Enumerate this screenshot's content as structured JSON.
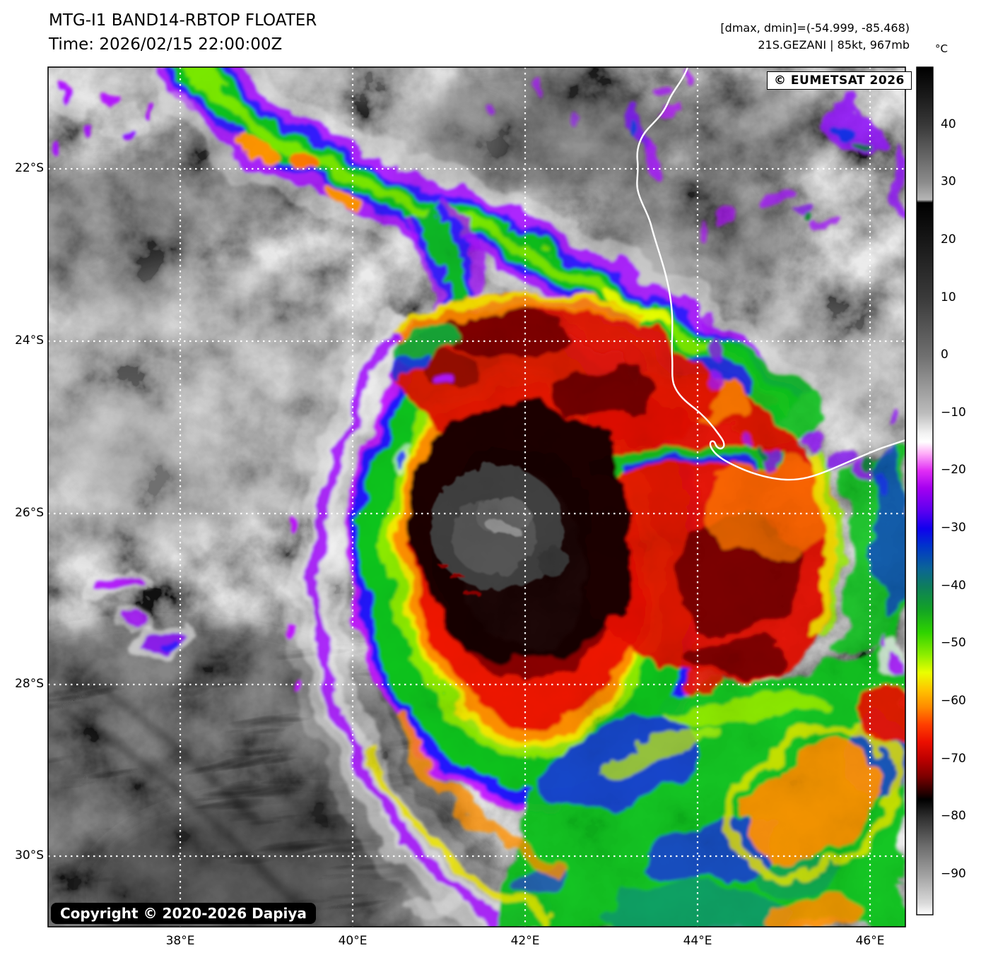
{
  "figure": {
    "title": "MTG-I1 BAND14-RBTOP FLOATER",
    "subtitle": "Time: 2026/02/15 22:00:00Z",
    "info_line1": "[dmax, dmin]=(-54.999, -85.468)",
    "info_line2": "21S.GEZANI | 85kt, 967mb"
  },
  "map": {
    "eumetsat_badge": "© EUMETSAT 2026",
    "copyright_badge": "Copyright © 2020-2026 Dapiya",
    "x_tick_labels": [
      "38°E",
      "40°E",
      "42°E",
      "44°E",
      "46°E"
    ],
    "y_tick_labels": [
      "22°S",
      "24°S",
      "26°S",
      "28°S",
      "30°S"
    ],
    "grid_style": "white-dotted",
    "coastline_color": "#ffffff"
  },
  "colorbar": {
    "unit": "°C",
    "tick_labels": [
      "40",
      "30",
      "20",
      "10",
      "0",
      "−10",
      "−20",
      "−30",
      "−40",
      "−50",
      "−60",
      "−70",
      "−80",
      "−90"
    ],
    "tick_values": [
      40,
      30,
      20,
      10,
      0,
      -10,
      -20,
      -30,
      -40,
      -50,
      -60,
      -70,
      -80,
      -90
    ],
    "value_range": [
      50,
      -97
    ],
    "gradient_stops": [
      [
        50,
        "#000000"
      ],
      [
        45,
        "#1a1a1a"
      ],
      [
        40,
        "#383838"
      ],
      [
        30,
        "#8c8c8c"
      ],
      [
        27,
        "#b6b6b6"
      ],
      [
        26.5,
        "#000000"
      ],
      [
        10,
        "#3a3a3a"
      ],
      [
        0,
        "#6f6f6f"
      ],
      [
        -10,
        "#bcbcbc"
      ],
      [
        -13.5,
        "#f2f2f2"
      ],
      [
        -15,
        "#ffffff"
      ],
      [
        -17,
        "#ffaef8"
      ],
      [
        -20,
        "#e02df5"
      ],
      [
        -23,
        "#a500f0"
      ],
      [
        -27,
        "#5b00f0"
      ],
      [
        -30,
        "#1000ee"
      ],
      [
        -33,
        "#0033cc"
      ],
      [
        -37,
        "#0b6596"
      ],
      [
        -40,
        "#0e7d5e"
      ],
      [
        -44,
        "#12a226"
      ],
      [
        -48,
        "#2ed300"
      ],
      [
        -52,
        "#8fee00"
      ],
      [
        -55,
        "#eaff00"
      ],
      [
        -58,
        "#ffc400"
      ],
      [
        -61,
        "#ff8a00"
      ],
      [
        -64,
        "#ff3f00"
      ],
      [
        -67,
        "#ec0f00"
      ],
      [
        -70,
        "#bd0000"
      ],
      [
        -73,
        "#7d0000"
      ],
      [
        -76,
        "#210000"
      ],
      [
        -77,
        "#000000"
      ],
      [
        -80,
        "#2e2e2e"
      ],
      [
        -85,
        "#6b6b6b"
      ],
      [
        -90,
        "#a0a0a0"
      ],
      [
        -95,
        "#dadada"
      ],
      [
        -97,
        "#ffffff"
      ]
    ]
  },
  "chart_data": {
    "type": "heatmap",
    "title": "MTG-I1 BAND14-RBTOP FLOATER",
    "time_utc": "2026/02/15 22:00:00Z",
    "satellite": "MTG-I1",
    "band": "BAND14",
    "enhancement": "RBTOP",
    "storm": {
      "id": "21S",
      "name": "GEZANI",
      "intensity_kt": 85,
      "pressure_mb": 967,
      "center_approx": {
        "lon_deg_e": 42.0,
        "lat_deg_s": 26.7
      }
    },
    "dmax_c": -54.999,
    "dmin_c": -85.468,
    "x_axis": {
      "unit": "°E",
      "ticks": [
        38,
        40,
        42,
        44,
        46
      ],
      "range_approx": [
        36.5,
        46.4
      ]
    },
    "y_axis": {
      "unit": "°S",
      "ticks": [
        22,
        24,
        26,
        28,
        30
      ],
      "range_approx": [
        20.8,
        30.9
      ]
    },
    "colorbar_unit": "°C",
    "grid": "dotted-white graticule every 2 degrees",
    "features": [
      "tropical cyclone with warm gray eye/dry slot near 42E 26.7S",
      "ring of overshooting cold tops (-70 to -85C, dark red to black) around the eye",
      "large red/orange cold cloud shield (-60 to -75C) extending east toward 45E",
      "curved convective band from 38E 21S arcing southeast toward 44E 25S with -55 to -60C cores",
      "green/blue outflow cirrus (-30 to -50C) across the southeast quadrant",
      "white west coastline of Madagascar drawn on the right half",
      "scattered cold convective cells (-15 to -30C, purple) over Madagascar",
      "warm gray stratocumulus field with dark filaments in the southwest corner"
    ]
  }
}
